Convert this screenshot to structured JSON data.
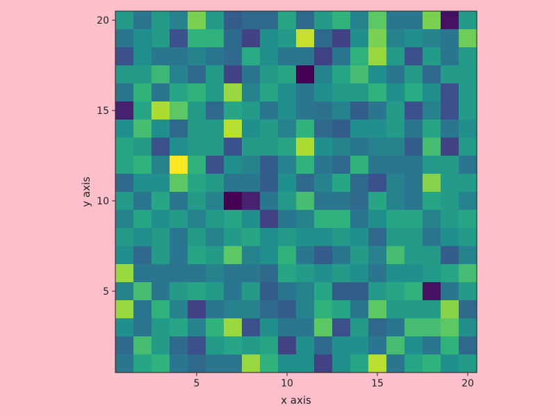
{
  "chart_data": {
    "type": "heatmap",
    "title": "",
    "xlabel": "x axis",
    "ylabel": "y axis",
    "xlim": [
      0.5,
      20.5
    ],
    "ylim": [
      0.5,
      20.5
    ],
    "x_ticks": [
      5,
      10,
      15,
      20
    ],
    "y_ticks": [
      5,
      10,
      15,
      20
    ],
    "x_tick_labels": [
      "5",
      "10",
      "15",
      "20"
    ],
    "y_tick_labels": [
      "5",
      "10",
      "15",
      "20"
    ],
    "colormap": "viridis",
    "value_range": [
      0,
      1
    ],
    "background_color": "#ffc0cb",
    "grid": false,
    "rows_top_to_bottom_y": [
      20,
      19,
      18,
      17,
      16,
      15,
      14,
      13,
      12,
      11,
      10,
      9,
      8,
      7,
      6,
      5,
      4,
      3,
      2,
      1
    ],
    "z": [
      [
        0.55,
        0.4,
        0.55,
        0.45,
        0.8,
        0.55,
        0.3,
        0.35,
        0.35,
        0.6,
        0.35,
        0.55,
        0.65,
        0.45,
        0.75,
        0.4,
        0.4,
        0.8,
        0.05,
        0.55
      ],
      [
        0.4,
        0.5,
        0.55,
        0.25,
        0.65,
        0.65,
        0.35,
        0.2,
        0.5,
        0.55,
        0.92,
        0.35,
        0.2,
        0.5,
        0.8,
        0.45,
        0.5,
        0.45,
        0.4,
        0.78
      ],
      [
        0.25,
        0.5,
        0.4,
        0.4,
        0.45,
        0.4,
        0.35,
        0.62,
        0.5,
        0.4,
        0.4,
        0.2,
        0.4,
        0.65,
        0.85,
        0.55,
        0.25,
        0.55,
        0.4,
        0.55
      ],
      [
        0.55,
        0.55,
        0.68,
        0.45,
        0.35,
        0.55,
        0.2,
        0.4,
        0.55,
        0.6,
        0.0,
        0.45,
        0.6,
        0.7,
        0.5,
        0.4,
        0.55,
        0.35,
        0.55,
        0.55
      ],
      [
        0.4,
        0.65,
        0.4,
        0.6,
        0.65,
        0.55,
        0.85,
        0.45,
        0.6,
        0.5,
        0.4,
        0.5,
        0.55,
        0.55,
        0.65,
        0.5,
        0.62,
        0.5,
        0.25,
        0.55
      ],
      [
        0.1,
        0.6,
        0.88,
        0.75,
        0.55,
        0.35,
        0.6,
        0.55,
        0.4,
        0.5,
        0.4,
        0.38,
        0.45,
        0.3,
        0.4,
        0.55,
        0.25,
        0.45,
        0.25,
        0.55
      ],
      [
        0.5,
        0.7,
        0.5,
        0.35,
        0.55,
        0.55,
        0.9,
        0.5,
        0.55,
        0.45,
        0.65,
        0.35,
        0.3,
        0.5,
        0.5,
        0.55,
        0.4,
        0.6,
        0.4,
        0.5
      ],
      [
        0.6,
        0.55,
        0.25,
        0.5,
        0.55,
        0.55,
        0.25,
        0.55,
        0.55,
        0.6,
        0.88,
        0.5,
        0.45,
        0.4,
        0.45,
        0.45,
        0.3,
        0.7,
        0.2,
        0.55
      ],
      [
        0.6,
        0.65,
        0.45,
        1.0,
        0.65,
        0.25,
        0.5,
        0.45,
        0.3,
        0.45,
        0.65,
        0.4,
        0.35,
        0.65,
        0.4,
        0.4,
        0.4,
        0.55,
        0.55,
        0.4
      ],
      [
        0.35,
        0.5,
        0.5,
        0.75,
        0.6,
        0.55,
        0.4,
        0.4,
        0.3,
        0.5,
        0.35,
        0.45,
        0.6,
        0.35,
        0.25,
        0.45,
        0.4,
        0.82,
        0.55,
        0.55
      ],
      [
        0.55,
        0.4,
        0.6,
        0.4,
        0.55,
        0.45,
        0.0,
        0.1,
        0.4,
        0.55,
        0.7,
        0.4,
        0.4,
        0.35,
        0.6,
        0.45,
        0.4,
        0.6,
        0.55,
        0.45
      ],
      [
        0.45,
        0.6,
        0.5,
        0.55,
        0.45,
        0.55,
        0.6,
        0.5,
        0.2,
        0.4,
        0.45,
        0.65,
        0.65,
        0.4,
        0.5,
        0.6,
        0.6,
        0.45,
        0.55,
        0.6
      ],
      [
        0.55,
        0.5,
        0.55,
        0.4,
        0.55,
        0.45,
        0.55,
        0.6,
        0.5,
        0.55,
        0.5,
        0.5,
        0.55,
        0.5,
        0.35,
        0.55,
        0.55,
        0.4,
        0.5,
        0.55
      ],
      [
        0.5,
        0.35,
        0.55,
        0.4,
        0.6,
        0.55,
        0.75,
        0.45,
        0.5,
        0.65,
        0.4,
        0.3,
        0.4,
        0.55,
        0.45,
        0.7,
        0.55,
        0.55,
        0.3,
        0.45
      ],
      [
        0.85,
        0.4,
        0.4,
        0.4,
        0.4,
        0.45,
        0.4,
        0.4,
        0.35,
        0.6,
        0.55,
        0.5,
        0.55,
        0.5,
        0.4,
        0.5,
        0.5,
        0.55,
        0.6,
        0.7
      ],
      [
        0.45,
        0.7,
        0.4,
        0.55,
        0.6,
        0.55,
        0.4,
        0.55,
        0.3,
        0.4,
        0.45,
        0.6,
        0.3,
        0.3,
        0.55,
        0.6,
        0.65,
        0.05,
        0.4,
        0.55
      ],
      [
        0.85,
        0.4,
        0.65,
        0.45,
        0.2,
        0.4,
        0.45,
        0.45,
        0.35,
        0.3,
        0.45,
        0.65,
        0.6,
        0.4,
        0.75,
        0.55,
        0.55,
        0.55,
        0.82,
        0.35
      ],
      [
        0.5,
        0.4,
        0.55,
        0.6,
        0.45,
        0.65,
        0.85,
        0.25,
        0.5,
        0.4,
        0.4,
        0.75,
        0.25,
        0.55,
        0.35,
        0.4,
        0.7,
        0.7,
        0.75,
        0.5
      ],
      [
        0.35,
        0.7,
        0.55,
        0.35,
        0.25,
        0.55,
        0.6,
        0.55,
        0.6,
        0.2,
        0.5,
        0.35,
        0.5,
        0.5,
        0.4,
        0.7,
        0.5,
        0.4,
        0.65,
        0.35
      ],
      [
        0.4,
        0.6,
        0.65,
        0.4,
        0.35,
        0.4,
        0.4,
        0.85,
        0.65,
        0.5,
        0.5,
        0.2,
        0.5,
        0.6,
        0.9,
        0.4,
        0.6,
        0.65,
        0.5,
        0.55
      ]
    ]
  }
}
